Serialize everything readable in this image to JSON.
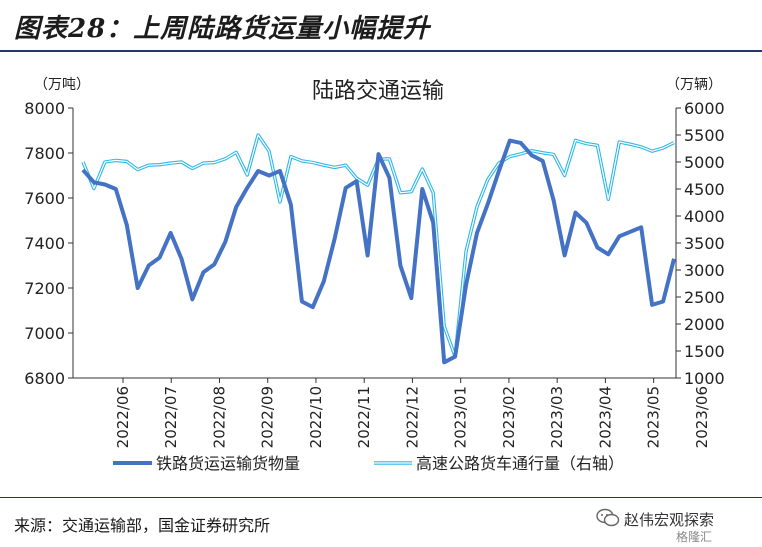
{
  "figure_title": "图表28：上周陆路货运量小幅提升",
  "source": "来源：交通运输部，国金证券研究所",
  "watermark": {
    "account": "赵伟宏观探索",
    "logo": "格隆汇"
  },
  "colors": {
    "rail": "#4472c4",
    "highway": "#2fb8ea",
    "rule": "#1f3864"
  },
  "chart_data": {
    "type": "line",
    "title": "陆路交通运输",
    "y_left_unit": "（万吨）",
    "y_right_unit": "（万辆）",
    "ylim_left": [
      6800,
      8000
    ],
    "ylim_right": [
      1000,
      6000
    ],
    "yticks_left": [
      6800,
      7000,
      7200,
      7400,
      7600,
      7800,
      8000
    ],
    "yticks_right": [
      1000,
      1500,
      2000,
      2500,
      3000,
      3500,
      4000,
      4500,
      5000,
      5500,
      6000
    ],
    "x_tick_labels": [
      "2022/06",
      "2022/07",
      "2022/08",
      "2022/09",
      "2022/10",
      "2022/11",
      "2022/12",
      "2023/01",
      "2023/02",
      "2023/03",
      "2023/04",
      "2023/05",
      "2023/06"
    ],
    "grid": false,
    "legend_position": "bottom",
    "series": [
      {
        "name": "铁路货运运输货物量",
        "axis": "left",
        "values": [
          7725,
          7670,
          7660,
          7640,
          7480,
          7200,
          7300,
          7335,
          7445,
          7330,
          7150,
          7270,
          7305,
          7405,
          7560,
          7645,
          7720,
          7700,
          7720,
          7570,
          7140,
          7115,
          7230,
          7420,
          7645,
          7675,
          7345,
          7795,
          7690,
          7300,
          7155,
          7640,
          7490,
          6870,
          6895,
          7215,
          7445,
          7575,
          7720,
          7855,
          7845,
          7790,
          7765,
          7590,
          7345,
          7535,
          7490,
          7380,
          7350,
          7430,
          7450,
          7470,
          7125,
          7140,
          7330
        ]
      },
      {
        "name": "高速公路货车通行量（右轴）",
        "axis": "right",
        "values": [
          5000,
          4510,
          5000,
          5030,
          5010,
          4860,
          4940,
          4950,
          4980,
          5000,
          4880,
          4980,
          4990,
          5060,
          5180,
          4760,
          5500,
          5200,
          4260,
          5100,
          5020,
          4990,
          4940,
          4900,
          4940,
          4700,
          4570,
          5050,
          5060,
          4430,
          4450,
          4870,
          4430,
          1960,
          1400,
          3350,
          4170,
          4680,
          4980,
          5100,
          5150,
          5210,
          5170,
          5140,
          4750,
          5400,
          5340,
          5310,
          4310,
          5370,
          5330,
          5280,
          5200,
          5260,
          5360
        ]
      }
    ]
  }
}
